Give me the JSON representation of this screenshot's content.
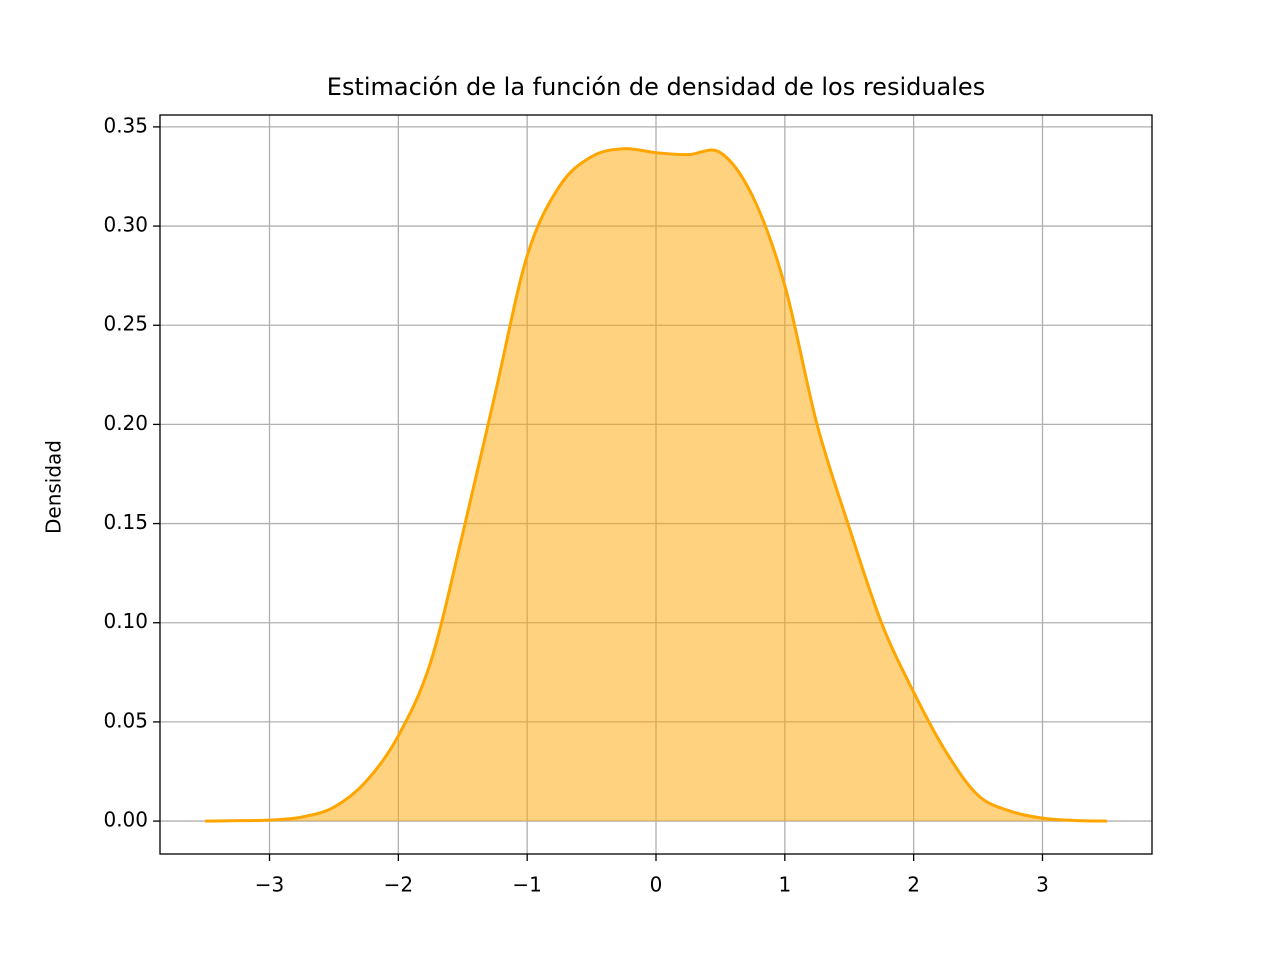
{
  "chart_data": {
    "type": "area",
    "title": "Estimación de la función de densidad de los residuales",
    "ylabel": "Densidad",
    "x": [
      -3.5,
      -3.25,
      -3,
      -2.75,
      -2.5,
      -2.25,
      -2,
      -1.75,
      -1.5,
      -1.25,
      -1,
      -0.75,
      -0.5,
      -0.25,
      0,
      0.25,
      0.5,
      0.75,
      1,
      1.25,
      1.5,
      1.75,
      2,
      2.25,
      2.5,
      2.75,
      3,
      3.25,
      3.5
    ],
    "values": [
      0,
      0.0002,
      0.0005,
      0.002,
      0.007,
      0.02,
      0.043,
      0.08,
      0.145,
      0.215,
      0.285,
      0.32,
      0.335,
      0.339,
      0.337,
      0.336,
      0.337,
      0.315,
      0.27,
      0.2,
      0.148,
      0.1,
      0.065,
      0.035,
      0.013,
      0.005,
      0.0015,
      0.0003,
      0
    ],
    "color": "#ffa500",
    "xlim": [
      -3.85,
      3.85
    ],
    "xticks": [
      {
        "value": -3,
        "label": "−3"
      },
      {
        "value": -2,
        "label": "−2"
      },
      {
        "value": -1,
        "label": "−1"
      },
      0,
      1,
      2,
      3
    ],
    "ylim": [
      -0.0166,
      0.356
    ],
    "yticks": [
      {
        "value": 0,
        "label": "0.00"
      },
      {
        "value": 0.05,
        "label": "0.05"
      },
      {
        "value": 0.1,
        "label": "0.10"
      },
      {
        "value": 0.15,
        "label": "0.15"
      },
      {
        "value": 0.2,
        "label": "0.20"
      },
      {
        "value": 0.25,
        "label": "0.25"
      },
      {
        "value": 0.3,
        "label": "0.30"
      },
      {
        "value": 0.35,
        "label": "0.35"
      }
    ],
    "grid": true
  }
}
